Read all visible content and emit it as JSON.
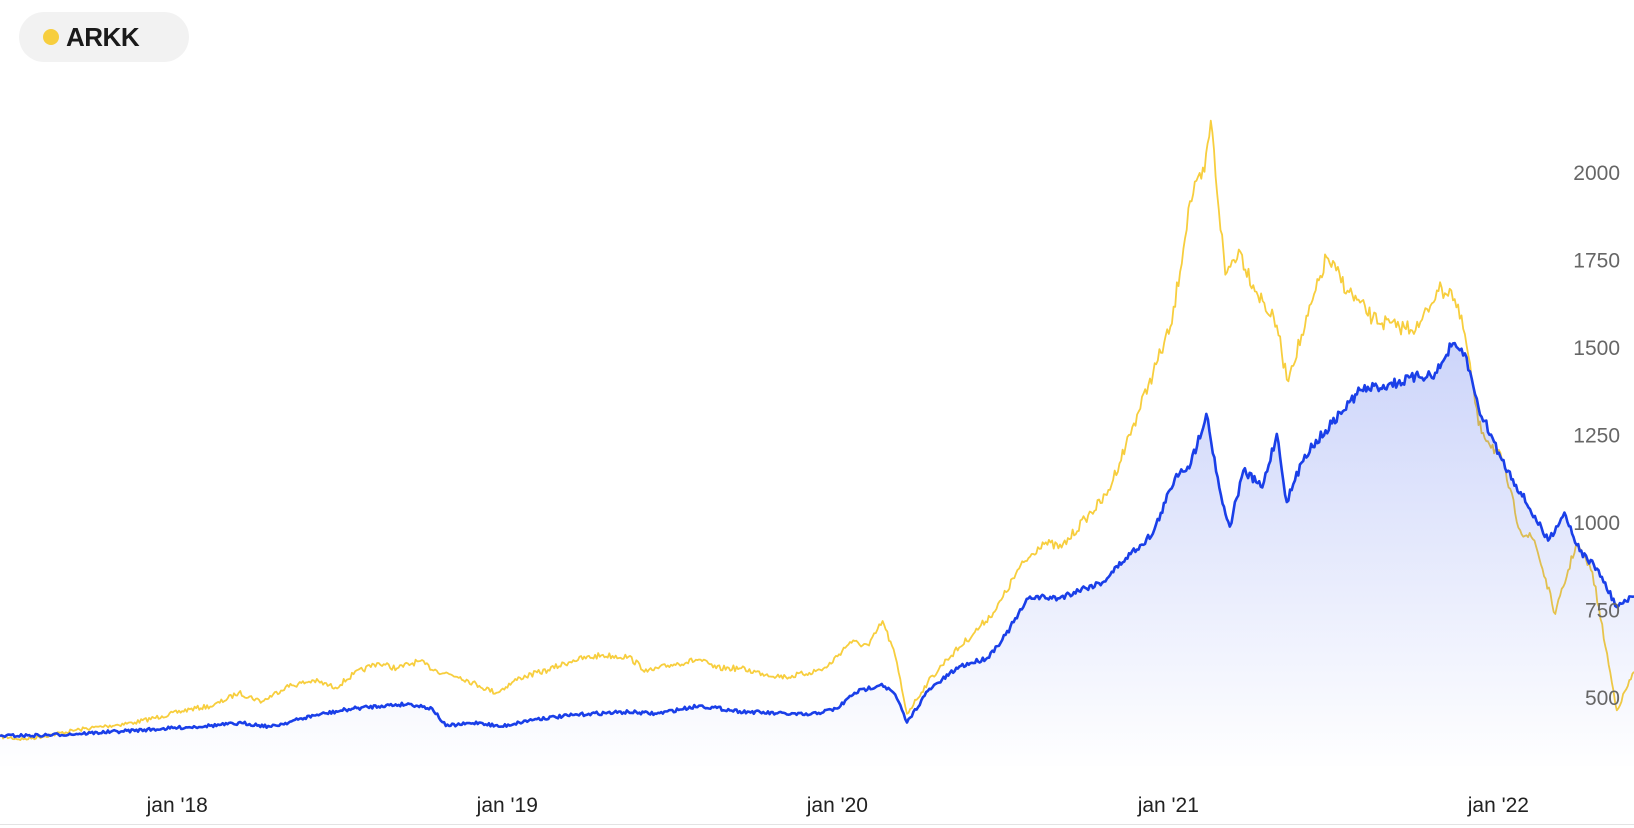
{
  "legend": {
    "label": "ARKK",
    "dot_color": "#F7CE3E"
  },
  "chart_data": {
    "type": "line",
    "title": "",
    "xlabel": "",
    "ylabel": "",
    "x_range": [
      "2017-06-19",
      "2022-05-31"
    ],
    "y_range": [
      380,
      2195
    ],
    "yticks": [
      500,
      750,
      1000,
      1250,
      1500,
      1750,
      2000
    ],
    "xticks": [
      {
        "date": "2018-01-01",
        "label": "jan '18"
      },
      {
        "date": "2019-01-01",
        "label": "jan '19"
      },
      {
        "date": "2020-01-01",
        "label": "jan '20"
      },
      {
        "date": "2021-01-01",
        "label": "jan '21"
      },
      {
        "date": "2022-01-01",
        "label": "jan '22"
      }
    ],
    "grid": false,
    "y_axis_position": "right",
    "series": [
      {
        "name": "ARKK",
        "color": "#F7CE3E",
        "area": false,
        "points": [
          [
            "2017-06-19",
            390
          ],
          [
            "2017-07-15",
            382
          ],
          [
            "2017-08-15",
            395
          ],
          [
            "2017-09-15",
            410
          ],
          [
            "2017-10-15",
            420
          ],
          [
            "2017-11-15",
            430
          ],
          [
            "2017-12-15",
            448
          ],
          [
            "2018-01-15",
            468
          ],
          [
            "2018-02-10",
            478
          ],
          [
            "2018-03-10",
            515
          ],
          [
            "2018-04-05",
            490
          ],
          [
            "2018-05-01",
            532
          ],
          [
            "2018-06-01",
            550
          ],
          [
            "2018-06-25",
            530
          ],
          [
            "2018-07-15",
            568
          ],
          [
            "2018-08-10",
            600
          ],
          [
            "2018-09-01",
            585
          ],
          [
            "2018-09-25",
            605
          ],
          [
            "2018-10-15",
            578
          ],
          [
            "2018-11-10",
            560
          ],
          [
            "2018-12-01",
            535
          ],
          [
            "2018-12-20",
            515
          ],
          [
            "2019-01-15",
            558
          ],
          [
            "2019-02-15",
            580
          ],
          [
            "2019-03-15",
            608
          ],
          [
            "2019-04-15",
            622
          ],
          [
            "2019-05-15",
            618
          ],
          [
            "2019-06-05",
            575
          ],
          [
            "2019-07-01",
            595
          ],
          [
            "2019-08-01",
            610
          ],
          [
            "2019-08-20",
            585
          ],
          [
            "2019-09-15",
            585
          ],
          [
            "2019-10-10",
            570
          ],
          [
            "2019-11-05",
            560
          ],
          [
            "2019-12-01",
            572
          ],
          [
            "2019-12-20",
            587
          ],
          [
            "2020-01-15",
            660
          ],
          [
            "2020-02-05",
            650
          ],
          [
            "2020-02-20",
            720
          ],
          [
            "2020-03-05",
            620
          ],
          [
            "2020-03-18",
            455
          ],
          [
            "2020-04-10",
            545
          ],
          [
            "2020-05-01",
            610
          ],
          [
            "2020-06-01",
            688
          ],
          [
            "2020-06-25",
            755
          ],
          [
            "2020-07-20",
            870
          ],
          [
            "2020-08-15",
            945
          ],
          [
            "2020-09-05",
            930
          ],
          [
            "2020-10-01",
            1012
          ],
          [
            "2020-10-25",
            1080
          ],
          [
            "2020-11-15",
            1222
          ],
          [
            "2020-12-10",
            1395
          ],
          [
            "2021-01-05",
            1570
          ],
          [
            "2021-01-25",
            1920
          ],
          [
            "2021-02-10",
            2004
          ],
          [
            "2021-02-17",
            2150
          ],
          [
            "2021-03-05",
            1710
          ],
          [
            "2021-03-20",
            1782
          ],
          [
            "2021-04-05",
            1680
          ],
          [
            "2021-05-01",
            1565
          ],
          [
            "2021-05-12",
            1410
          ],
          [
            "2021-06-01",
            1560
          ],
          [
            "2021-06-25",
            1760
          ],
          [
            "2021-07-20",
            1660
          ],
          [
            "2021-08-15",
            1585
          ],
          [
            "2021-09-10",
            1560
          ],
          [
            "2021-10-05",
            1560
          ],
          [
            "2021-10-25",
            1665
          ],
          [
            "2021-11-10",
            1665
          ],
          [
            "2021-11-25",
            1540
          ],
          [
            "2021-12-10",
            1280
          ],
          [
            "2022-01-05",
            1180
          ],
          [
            "2022-01-25",
            980
          ],
          [
            "2022-02-10",
            950
          ],
          [
            "2022-03-05",
            740
          ],
          [
            "2022-03-28",
            940
          ],
          [
            "2022-04-15",
            860
          ],
          [
            "2022-05-12",
            465
          ],
          [
            "2022-05-31",
            575
          ]
        ]
      },
      {
        "name": "",
        "color": "#1A3FE8",
        "area": true,
        "points": [
          [
            "2017-06-19",
            392
          ],
          [
            "2017-08-01",
            393
          ],
          [
            "2017-09-15",
            398
          ],
          [
            "2017-11-01",
            405
          ],
          [
            "2017-12-15",
            412
          ],
          [
            "2018-02-01",
            420
          ],
          [
            "2018-03-15",
            428
          ],
          [
            "2018-04-15",
            418
          ],
          [
            "2018-06-01",
            450
          ],
          [
            "2018-07-15",
            470
          ],
          [
            "2018-08-15",
            478
          ],
          [
            "2018-09-15",
            483
          ],
          [
            "2018-10-10",
            470
          ],
          [
            "2018-10-25",
            420
          ],
          [
            "2018-12-01",
            430
          ],
          [
            "2018-12-24",
            418
          ],
          [
            "2019-02-01",
            440
          ],
          [
            "2019-04-01",
            455
          ],
          [
            "2019-05-15",
            460
          ],
          [
            "2019-06-15",
            455
          ],
          [
            "2019-08-01",
            478
          ],
          [
            "2019-09-15",
            462
          ],
          [
            "2019-10-25",
            456
          ],
          [
            "2019-12-01",
            452
          ],
          [
            "2020-01-01",
            470
          ],
          [
            "2020-01-20",
            515
          ],
          [
            "2020-02-19",
            540
          ],
          [
            "2020-03-05",
            510
          ],
          [
            "2020-03-18",
            430
          ],
          [
            "2020-04-10",
            520
          ],
          [
            "2020-05-15",
            590
          ],
          [
            "2020-06-15",
            615
          ],
          [
            "2020-07-05",
            680
          ],
          [
            "2020-08-01",
            790
          ],
          [
            "2020-09-01",
            785
          ],
          [
            "2020-10-01",
            815
          ],
          [
            "2020-10-20",
            830
          ],
          [
            "2020-11-15",
            900
          ],
          [
            "2020-12-15",
            970
          ],
          [
            "2021-01-10",
            1140
          ],
          [
            "2021-01-26",
            1170
          ],
          [
            "2021-02-12",
            1312
          ],
          [
            "2021-03-02",
            1055
          ],
          [
            "2021-03-10",
            990
          ],
          [
            "2021-03-25",
            1150
          ],
          [
            "2021-04-15",
            1102
          ],
          [
            "2021-05-01",
            1255
          ],
          [
            "2021-05-12",
            1060
          ],
          [
            "2021-06-01",
            1195
          ],
          [
            "2021-07-01",
            1285
          ],
          [
            "2021-08-01",
            1380
          ],
          [
            "2021-09-01",
            1395
          ],
          [
            "2021-10-05",
            1418
          ],
          [
            "2021-10-25",
            1430
          ],
          [
            "2021-11-10",
            1505
          ],
          [
            "2021-11-25",
            1485
          ],
          [
            "2021-12-10",
            1330
          ],
          [
            "2022-01-05",
            1180
          ],
          [
            "2022-02-05",
            1040
          ],
          [
            "2022-02-25",
            950
          ],
          [
            "2022-03-15",
            1030
          ],
          [
            "2022-04-01",
            920
          ],
          [
            "2022-04-20",
            870
          ],
          [
            "2022-05-12",
            760
          ],
          [
            "2022-05-31",
            790
          ]
        ]
      }
    ]
  }
}
